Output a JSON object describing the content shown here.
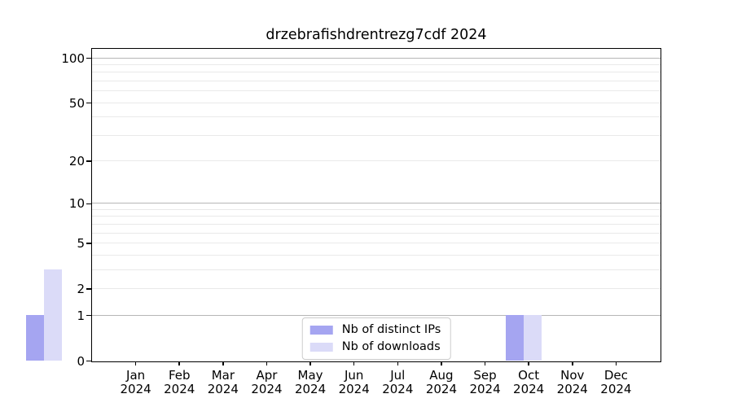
{
  "chart_data": {
    "type": "bar",
    "title": "drzebrafishdrentrezg7cdf 2024",
    "categories": [
      {
        "month": "Jan",
        "year": "2024"
      },
      {
        "month": "Feb",
        "year": "2024"
      },
      {
        "month": "Mar",
        "year": "2024"
      },
      {
        "month": "Apr",
        "year": "2024"
      },
      {
        "month": "May",
        "year": "2024"
      },
      {
        "month": "Jun",
        "year": "2024"
      },
      {
        "month": "Jul",
        "year": "2024"
      },
      {
        "month": "Aug",
        "year": "2024"
      },
      {
        "month": "Sep",
        "year": "2024"
      },
      {
        "month": "Oct",
        "year": "2024"
      },
      {
        "month": "Nov",
        "year": "2024"
      },
      {
        "month": "Dec",
        "year": "2024"
      }
    ],
    "series": [
      {
        "name": "Nb of distinct IPs",
        "color": "#a5a5f1",
        "values": [
          1,
          0,
          0,
          0,
          0,
          0,
          0,
          0,
          0,
          0,
          0,
          1
        ]
      },
      {
        "name": "Nb of downloads",
        "color": "#dbdbf8",
        "values": [
          3,
          0,
          0,
          0,
          0,
          0,
          0,
          0,
          0,
          0,
          0,
          1
        ]
      }
    ],
    "xlabel": "",
    "ylabel": "",
    "yscale": "log1p",
    "ylim": [
      0,
      115
    ],
    "yticks": [
      0,
      1,
      2,
      5,
      10,
      20,
      50,
      100
    ],
    "grid": {
      "on": true,
      "major": [
        1,
        10,
        100
      ],
      "minor": [
        2,
        3,
        4,
        5,
        6,
        7,
        8,
        9,
        20,
        30,
        40,
        50,
        60,
        70,
        80,
        90
      ],
      "major_color": "#b6b6b6",
      "minor_color": "#e9e9e9"
    },
    "legend": {
      "position": "lower center",
      "entries": [
        "Nb of distinct IPs",
        "Nb of downloads"
      ]
    },
    "spine_color": "#000000",
    "background_color": "#ffffff"
  }
}
